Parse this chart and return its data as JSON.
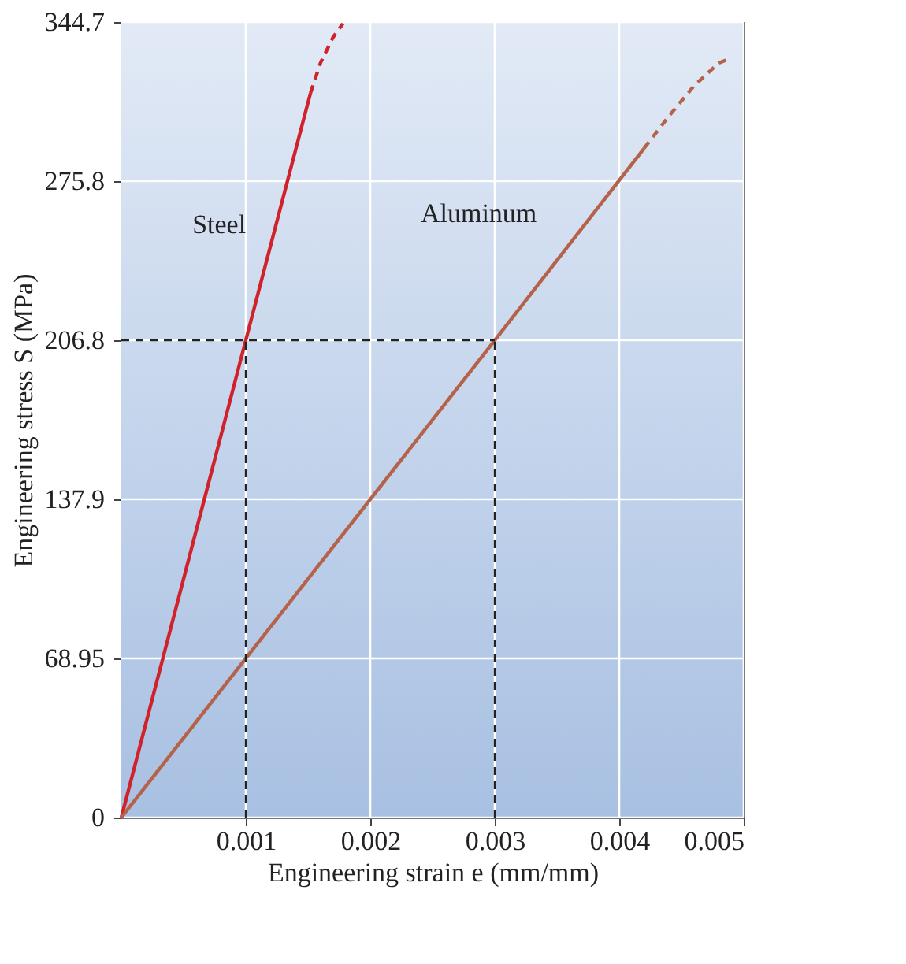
{
  "chart_data": {
    "type": "line",
    "xlabel": "Engineering strain e (mm/mm)",
    "ylabel": "Engineering stress S (MPa)",
    "xlim": [
      0,
      0.005
    ],
    "ylim": [
      0,
      344.7
    ],
    "xticks": [
      0.001,
      0.002,
      0.003,
      0.004,
      0.005
    ],
    "yticks": [
      0,
      68.95,
      137.9,
      206.8,
      275.8,
      344.7
    ],
    "grid": true,
    "series": [
      {
        "name": "Steel",
        "color": "#d0222b",
        "line_style": "solid",
        "x": [
          0,
          0.001,
          0.00152
        ],
        "values": [
          0,
          206.8,
          314
        ]
      },
      {
        "color": "#d0222b",
        "line_style": "dashed",
        "x": [
          0.00152,
          0.0016,
          0.0017,
          0.00178
        ],
        "values": [
          314,
          327,
          338,
          344
        ]
      },
      {
        "name": "Aluminum",
        "color": "#b5624a",
        "line_style": "solid",
        "x": [
          0,
          0.003,
          0.0042
        ],
        "values": [
          0,
          206.8,
          290
        ]
      },
      {
        "color": "#b5624a",
        "line_style": "dashed",
        "x": [
          0.0042,
          0.0044,
          0.0046,
          0.0048,
          0.0049
        ],
        "values": [
          290,
          304,
          317,
          327,
          329
        ]
      },
      {
        "color": "#222222",
        "line_style": "dashed",
        "x": [
          0,
          0.003
        ],
        "values": [
          206.8,
          206.8
        ]
      },
      {
        "color": "#222222",
        "line_style": "dashed",
        "x": [
          0.001,
          0.001
        ],
        "values": [
          0,
          206.8
        ]
      },
      {
        "color": "#222222",
        "line_style": "dashed",
        "x": [
          0.003,
          0.003
        ],
        "values": [
          0,
          206.8
        ]
      }
    ]
  }
}
